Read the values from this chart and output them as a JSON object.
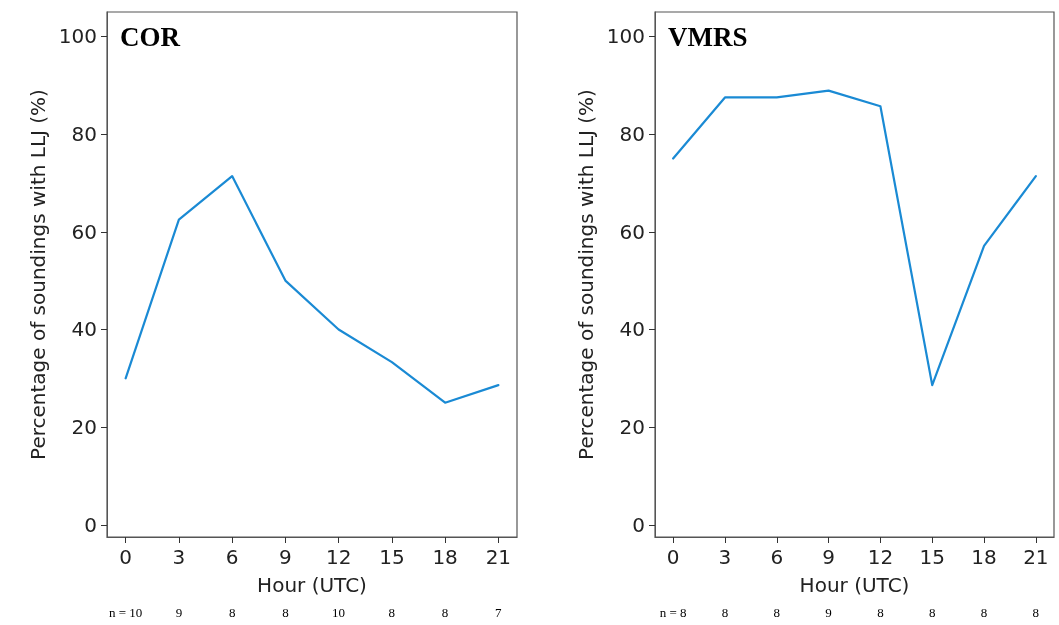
{
  "chart_data": [
    {
      "type": "line",
      "title": "COR",
      "xlabel": "Hour (UTC)",
      "ylabel": "Percentage of soundings with LLJ (%)",
      "x": [
        0,
        3,
        6,
        9,
        12,
        15,
        18,
        21
      ],
      "series": [
        {
          "color": "#1a8ad4",
          "values": [
            30,
            62.5,
            71.4,
            50,
            40,
            33.3,
            25,
            28.6
          ]
        }
      ],
      "xlim": [
        -1.05,
        22.05
      ],
      "xticks": [
        0,
        3,
        6,
        9,
        12,
        15,
        18,
        21
      ],
      "ylim": [
        -2.5,
        105
      ],
      "yticks": [
        0,
        20,
        40,
        60,
        80,
        100
      ],
      "grid": false,
      "marker": "none",
      "line_style": "solid",
      "annotations": [
        "n = 10",
        "9",
        "8",
        "8",
        "10",
        "8",
        "8",
        "7"
      ]
    },
    {
      "type": "line",
      "title": "VMRS",
      "xlabel": "Hour (UTC)",
      "ylabel": "Percentage of soundings with LLJ (%)",
      "x": [
        0,
        3,
        6,
        9,
        12,
        15,
        18,
        21
      ],
      "series": [
        {
          "color": "#1a8ad4",
          "values": [
            75,
            87.5,
            87.5,
            88.9,
            85.7,
            28.6,
            57.1,
            71.4
          ]
        }
      ],
      "xlim": [
        -1.05,
        22.05
      ],
      "xticks": [
        0,
        3,
        6,
        9,
        12,
        15,
        18,
        21
      ],
      "ylim": [
        -2.5,
        105
      ],
      "yticks": [
        0,
        20,
        40,
        60,
        80,
        100
      ],
      "grid": false,
      "marker": "none",
      "line_style": "solid",
      "annotations": [
        "n = 8",
        "8",
        "8",
        "9",
        "8",
        "8",
        "8",
        "8"
      ]
    }
  ]
}
